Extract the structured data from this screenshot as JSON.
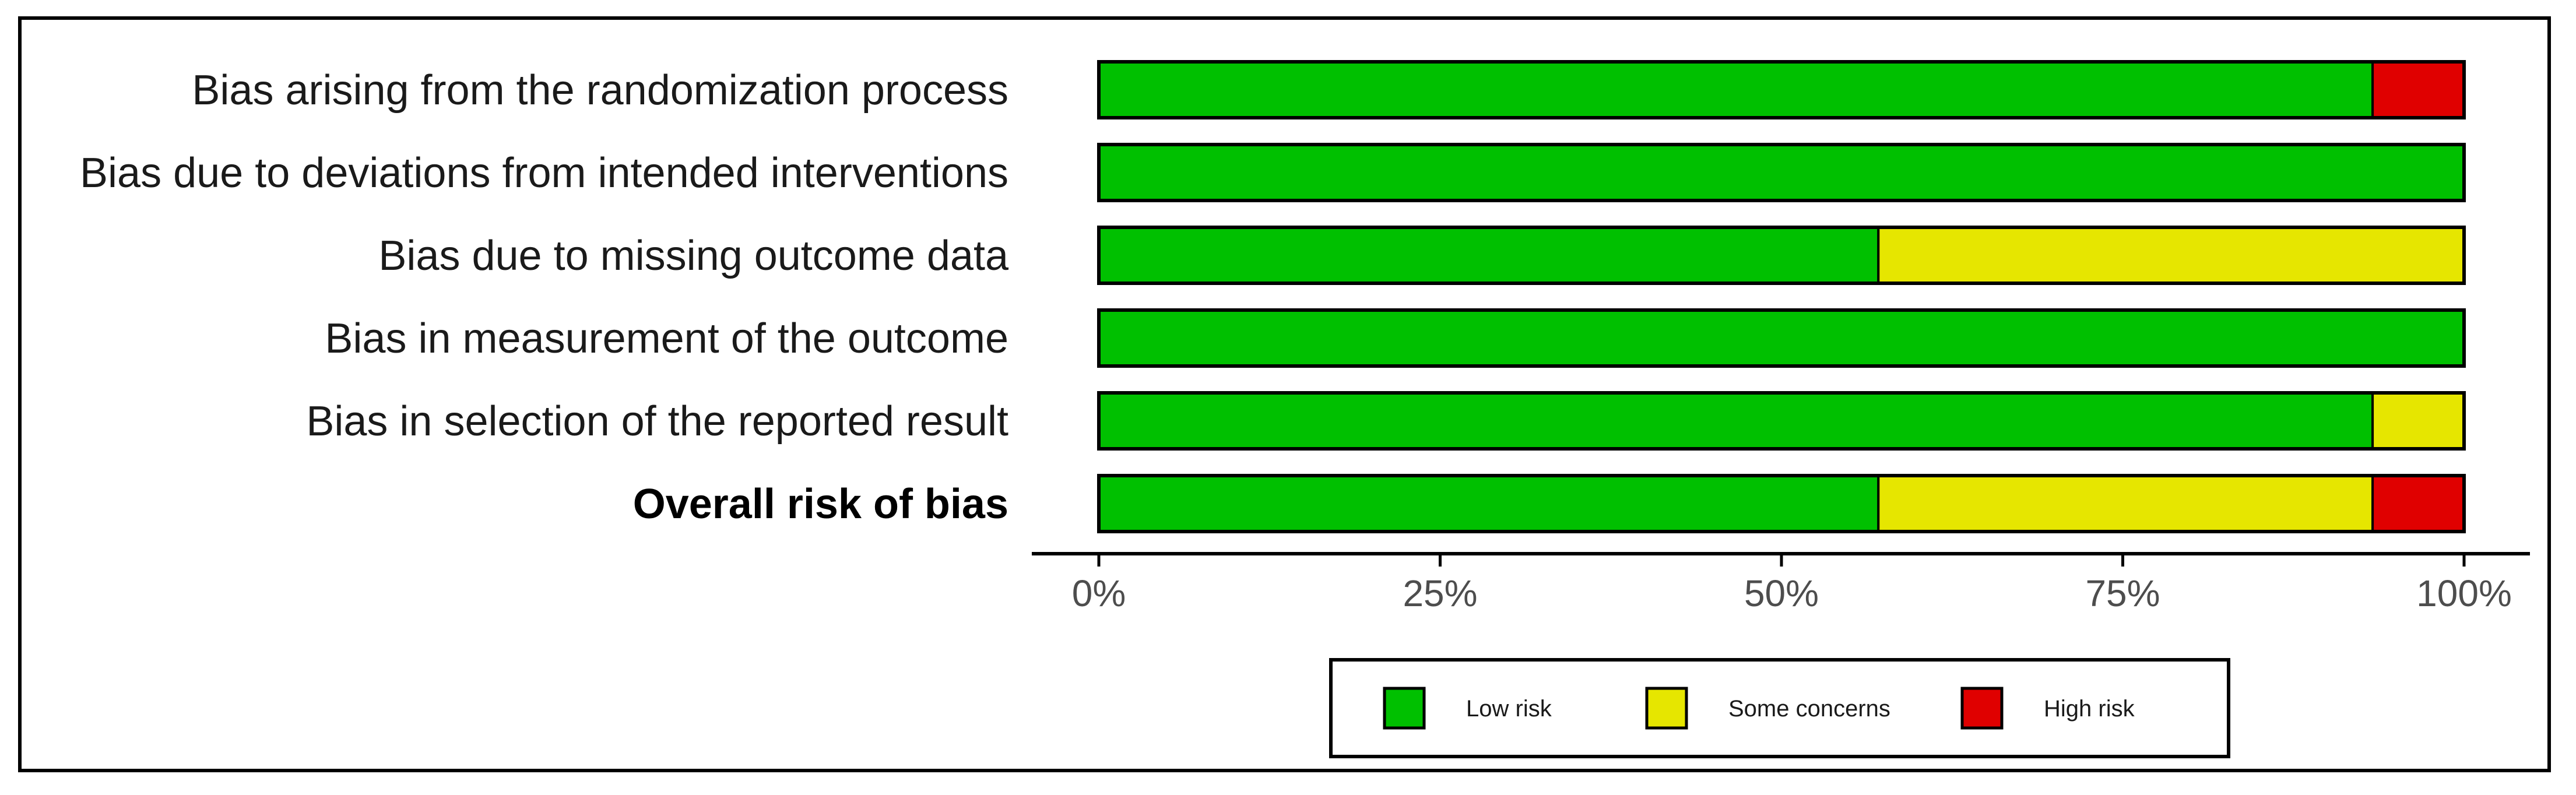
{
  "chart_data": {
    "type": "bar",
    "orientation": "horizontal",
    "stacked": true,
    "categories": [
      "Bias arising from the randomization process",
      "Bias due to deviations from intended interventions",
      "Bias due to missing outcome data",
      "Bias in measurement of the outcome",
      "Bias in selection of the reported result",
      "Overall risk of bias"
    ],
    "bold_categories": [
      "Overall risk of bias"
    ],
    "series": [
      {
        "name": "Low risk",
        "color": "#00c000",
        "values": [
          93.3,
          100,
          57.1,
          100,
          93.3,
          57.1
        ]
      },
      {
        "name": "Some concerns",
        "color": "#e6e600",
        "values": [
          0,
          0,
          42.9,
          0,
          6.7,
          36.2
        ]
      },
      {
        "name": "High risk",
        "color": "#e00000",
        "values": [
          6.7,
          0,
          0,
          0,
          0,
          6.7
        ]
      }
    ],
    "x_ticks": [
      "0%",
      "25%",
      "50%",
      "75%",
      "100%"
    ],
    "xlim": [
      0,
      100
    ],
    "xlabel": "",
    "ylabel": "",
    "title": "",
    "grid": false,
    "legend_position": "bottom"
  }
}
